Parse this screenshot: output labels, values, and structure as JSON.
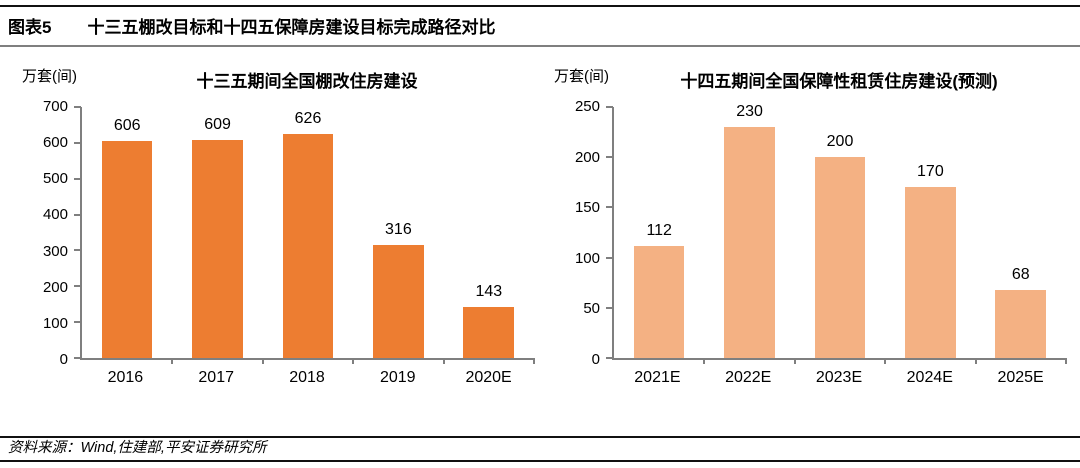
{
  "header": {
    "figure_label": "图表5",
    "title": "十三五棚改目标和十四五保障房建设目标完成路径对比"
  },
  "footer": {
    "source": "资料来源：Wind,住建部,平安证券研究所"
  },
  "colors": {
    "left_bar": "#ED7D31",
    "right_bar": "#F4B183",
    "axis": "#7f7f7f"
  },
  "chart_data": [
    {
      "type": "bar",
      "title": "十三五期间全国棚改住房建设",
      "unit": "万套(间)",
      "categories": [
        "2016",
        "2017",
        "2018",
        "2019",
        "2020E"
      ],
      "values": [
        606,
        609,
        626,
        316,
        143
      ],
      "ylim": [
        0,
        700
      ],
      "ytick_step": 100,
      "bar_color": "#ED7D31",
      "data_labels": true,
      "grid": false,
      "legend": false
    },
    {
      "type": "bar",
      "title": "十四五期间全国保障性租赁住房建设(预测)",
      "unit": "万套(间)",
      "categories": [
        "2021E",
        "2022E",
        "2023E",
        "2024E",
        "2025E"
      ],
      "values": [
        112,
        230,
        200,
        170,
        68
      ],
      "ylim": [
        0,
        250
      ],
      "ytick_step": 50,
      "bar_color": "#F4B183",
      "data_labels": true,
      "grid": false,
      "legend": false
    }
  ]
}
